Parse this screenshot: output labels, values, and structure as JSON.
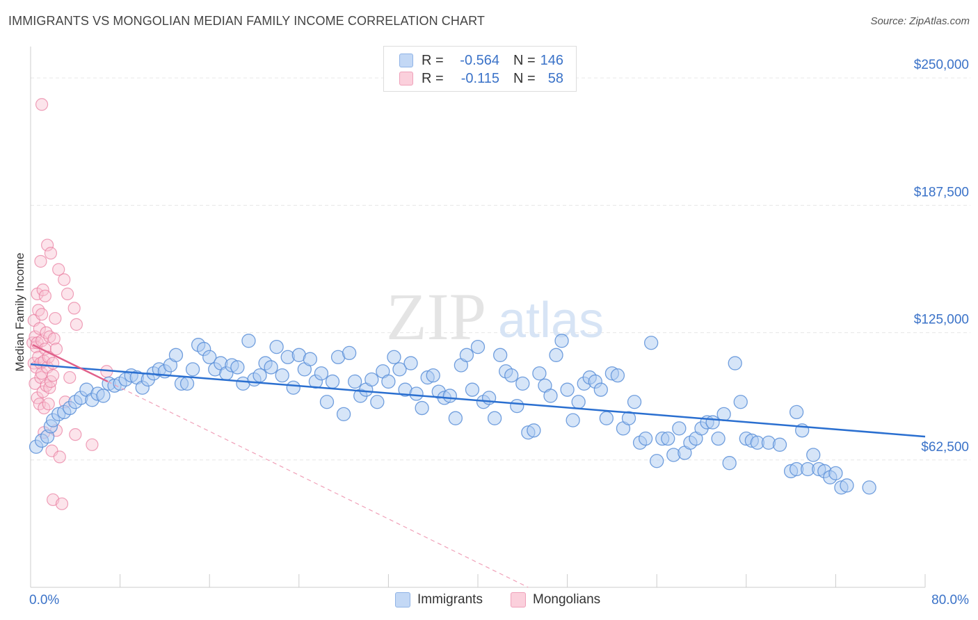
{
  "header": {
    "title": "IMMIGRANTS VS MONGOLIAN MEDIAN FAMILY INCOME CORRELATION CHART",
    "source": "Source: ZipAtlas.com"
  },
  "watermark": {
    "zip": "ZIP",
    "atlas": "atlas"
  },
  "stats_legend": {
    "rows": [
      {
        "r_label": "R =",
        "r_value": "-0.564",
        "n_label": "N =",
        "n_value": "146",
        "color": "#9bbfee"
      },
      {
        "r_label": "R =",
        "r_value": "-0.115",
        "n_label": "N =",
        "n_value": "58",
        "color": "#f4a7c0"
      }
    ]
  },
  "chart_data": {
    "type": "scatter",
    "title": "IMMIGRANTS VS MONGOLIAN MEDIAN FAMILY INCOME CORRELATION CHART",
    "xlabel": "",
    "ylabel": "Median Family Income",
    "xlim": [
      0,
      80
    ],
    "ylim": [
      0,
      262000
    ],
    "x_tick_labels": [
      "0.0%",
      "80.0%"
    ],
    "y_ticks": [
      62500,
      125000,
      187500,
      250000
    ],
    "y_tick_labels": [
      "$62,500",
      "$125,000",
      "$187,500",
      "$250,000"
    ],
    "grid": true,
    "legend_position": "bottom-center",
    "series": [
      {
        "name": "Immigrants",
        "color": "#5b8fd8",
        "fill": "#aecbf2",
        "trend": {
          "x": [
            0,
            80
          ],
          "y": [
            109500,
            74000
          ]
        },
        "points": [
          [
            0.5,
            69000
          ],
          [
            1,
            72000
          ],
          [
            1.5,
            74000
          ],
          [
            1.8,
            79000
          ],
          [
            2,
            82000
          ],
          [
            2.5,
            85000
          ],
          [
            3,
            86000
          ],
          [
            3.5,
            88000
          ],
          [
            4,
            91000
          ],
          [
            4.5,
            93000
          ],
          [
            5,
            97000
          ],
          [
            5.5,
            92000
          ],
          [
            6,
            95000
          ],
          [
            6.5,
            94000
          ],
          [
            7,
            100000
          ],
          [
            7.5,
            99000
          ],
          [
            8,
            100000
          ],
          [
            8.5,
            102000
          ],
          [
            9,
            104000
          ],
          [
            9.5,
            103000
          ],
          [
            10,
            98000
          ],
          [
            10.5,
            102000
          ],
          [
            11,
            105000
          ],
          [
            11.5,
            107000
          ],
          [
            12,
            106000
          ],
          [
            12.5,
            109000
          ],
          [
            13,
            114000
          ],
          [
            13.5,
            100000
          ],
          [
            14,
            100000
          ],
          [
            14.5,
            107000
          ],
          [
            15,
            119000
          ],
          [
            15.5,
            117000
          ],
          [
            16,
            113000
          ],
          [
            16.5,
            107000
          ],
          [
            17,
            110000
          ],
          [
            17.5,
            105000
          ],
          [
            18,
            109000
          ],
          [
            18.5,
            108000
          ],
          [
            19,
            100000
          ],
          [
            19.5,
            121000
          ],
          [
            20,
            102000
          ],
          [
            20.5,
            104000
          ],
          [
            21,
            110000
          ],
          [
            21.5,
            108000
          ],
          [
            22,
            118000
          ],
          [
            22.5,
            104000
          ],
          [
            23,
            113000
          ],
          [
            23.5,
            98000
          ],
          [
            24,
            114000
          ],
          [
            24.5,
            107000
          ],
          [
            25,
            112000
          ],
          [
            25.5,
            101000
          ],
          [
            26,
            105000
          ],
          [
            26.5,
            91000
          ],
          [
            27,
            101000
          ],
          [
            27.5,
            113000
          ],
          [
            28,
            85000
          ],
          [
            28.5,
            115000
          ],
          [
            29,
            101000
          ],
          [
            29.5,
            94000
          ],
          [
            30,
            97000
          ],
          [
            30.5,
            102000
          ],
          [
            31,
            91000
          ],
          [
            31.5,
            106000
          ],
          [
            32,
            101000
          ],
          [
            32.5,
            113000
          ],
          [
            33,
            107000
          ],
          [
            33.5,
            97000
          ],
          [
            34,
            110000
          ],
          [
            34.5,
            95000
          ],
          [
            35,
            88000
          ],
          [
            35.5,
            103000
          ],
          [
            36,
            104000
          ],
          [
            36.5,
            96000
          ],
          [
            37,
            93000
          ],
          [
            37.5,
            94000
          ],
          [
            38,
            83000
          ],
          [
            38.5,
            109000
          ],
          [
            39,
            114000
          ],
          [
            39.5,
            97000
          ],
          [
            40,
            118000
          ],
          [
            40.5,
            91000
          ],
          [
            41,
            93000
          ],
          [
            41.5,
            83000
          ],
          [
            42,
            114000
          ],
          [
            42.5,
            106000
          ],
          [
            43,
            104000
          ],
          [
            43.5,
            89000
          ],
          [
            44,
            100000
          ],
          [
            44.5,
            76000
          ],
          [
            45,
            77000
          ],
          [
            45.5,
            105000
          ],
          [
            46,
            99000
          ],
          [
            46.5,
            94000
          ],
          [
            47,
            114000
          ],
          [
            47.5,
            121000
          ],
          [
            48,
            97000
          ],
          [
            48.5,
            82000
          ],
          [
            49,
            91000
          ],
          [
            49.5,
            100000
          ],
          [
            50,
            103000
          ],
          [
            50.5,
            101000
          ],
          [
            51,
            97000
          ],
          [
            51.5,
            83000
          ],
          [
            52,
            105000
          ],
          [
            52.5,
            104000
          ],
          [
            53,
            78000
          ],
          [
            53.5,
            83000
          ],
          [
            54,
            91000
          ],
          [
            54.5,
            71000
          ],
          [
            55,
            73000
          ],
          [
            55.5,
            120000
          ],
          [
            56,
            62000
          ],
          [
            56.5,
            73000
          ],
          [
            57,
            73000
          ],
          [
            57.5,
            65000
          ],
          [
            58,
            78000
          ],
          [
            58.5,
            66000
          ],
          [
            59,
            71000
          ],
          [
            59.5,
            73000
          ],
          [
            60,
            78000
          ],
          [
            60.5,
            81000
          ],
          [
            61,
            81000
          ],
          [
            61.5,
            73000
          ],
          [
            62,
            85000
          ],
          [
            62.5,
            61000
          ],
          [
            63,
            110000
          ],
          [
            63.5,
            91000
          ],
          [
            64,
            73000
          ],
          [
            64.5,
            72000
          ],
          [
            65,
            71000
          ],
          [
            66,
            71000
          ],
          [
            67,
            70000
          ],
          [
            68,
            57000
          ],
          [
            68.5,
            58000
          ],
          [
            69,
            77000
          ],
          [
            69.5,
            58000
          ],
          [
            70,
            65000
          ],
          [
            70.5,
            58000
          ],
          [
            71,
            57000
          ],
          [
            71.5,
            54000
          ],
          [
            72,
            56000
          ],
          [
            72.5,
            49000
          ],
          [
            73,
            50000
          ],
          [
            75,
            49000
          ],
          [
            68.5,
            86000
          ]
        ]
      },
      {
        "name": "Mongolians",
        "color": "#e8799c",
        "fill": "#f8c3d3",
        "trend": {
          "x": [
            0.2,
            6.9
          ],
          "y": [
            119000,
            101000
          ]
        },
        "trend_ext": {
          "x": [
            6.9,
            44.5
          ],
          "y": [
            101000,
            0
          ]
        },
        "points": [
          [
            0.2,
            120000
          ],
          [
            0.3,
            110000
          ],
          [
            0.3,
            131000
          ],
          [
            0.4,
            100000
          ],
          [
            0.4,
            123000
          ],
          [
            0.5,
            108000
          ],
          [
            0.5,
            118000
          ],
          [
            0.6,
            93000
          ],
          [
            0.6,
            144000
          ],
          [
            0.6,
            120000
          ],
          [
            0.7,
            113000
          ],
          [
            0.7,
            136000
          ],
          [
            0.8,
            127000
          ],
          [
            0.8,
            90000
          ],
          [
            0.9,
            110000
          ],
          [
            0.9,
            103000
          ],
          [
            1,
            105000
          ],
          [
            1,
            121000
          ],
          [
            1,
            134000
          ],
          [
            1.1,
            146000
          ],
          [
            1.1,
            96000
          ],
          [
            1.2,
            76000
          ],
          [
            1.2,
            88000
          ],
          [
            1.2,
            111000
          ],
          [
            1.3,
            117000
          ],
          [
            1.3,
            143000
          ],
          [
            1.4,
            99000
          ],
          [
            1.4,
            125000
          ],
          [
            1.5,
            168000
          ],
          [
            1.5,
            108000
          ],
          [
            1.6,
            113000
          ],
          [
            1.6,
            90000
          ],
          [
            1.7,
            98000
          ],
          [
            1.7,
            123000
          ],
          [
            1.8,
            164000
          ],
          [
            1.8,
            101000
          ],
          [
            1.9,
            67000
          ],
          [
            2,
            110000
          ],
          [
            2,
            104000
          ],
          [
            2,
            43000
          ],
          [
            2.1,
            122000
          ],
          [
            2.2,
            132000
          ],
          [
            2.3,
            77000
          ],
          [
            2.5,
            156000
          ],
          [
            2.6,
            64000
          ],
          [
            2.8,
            41000
          ],
          [
            3,
            151000
          ],
          [
            3.1,
            91000
          ],
          [
            3.3,
            144000
          ],
          [
            3.5,
            103000
          ],
          [
            3.9,
            137000
          ],
          [
            4.1,
            129000
          ],
          [
            4,
            75000
          ],
          [
            5.5,
            70000
          ],
          [
            6.8,
            106000
          ],
          [
            1,
            237000
          ],
          [
            0.9,
            160000
          ],
          [
            2.3,
            117000
          ]
        ]
      }
    ]
  }
}
